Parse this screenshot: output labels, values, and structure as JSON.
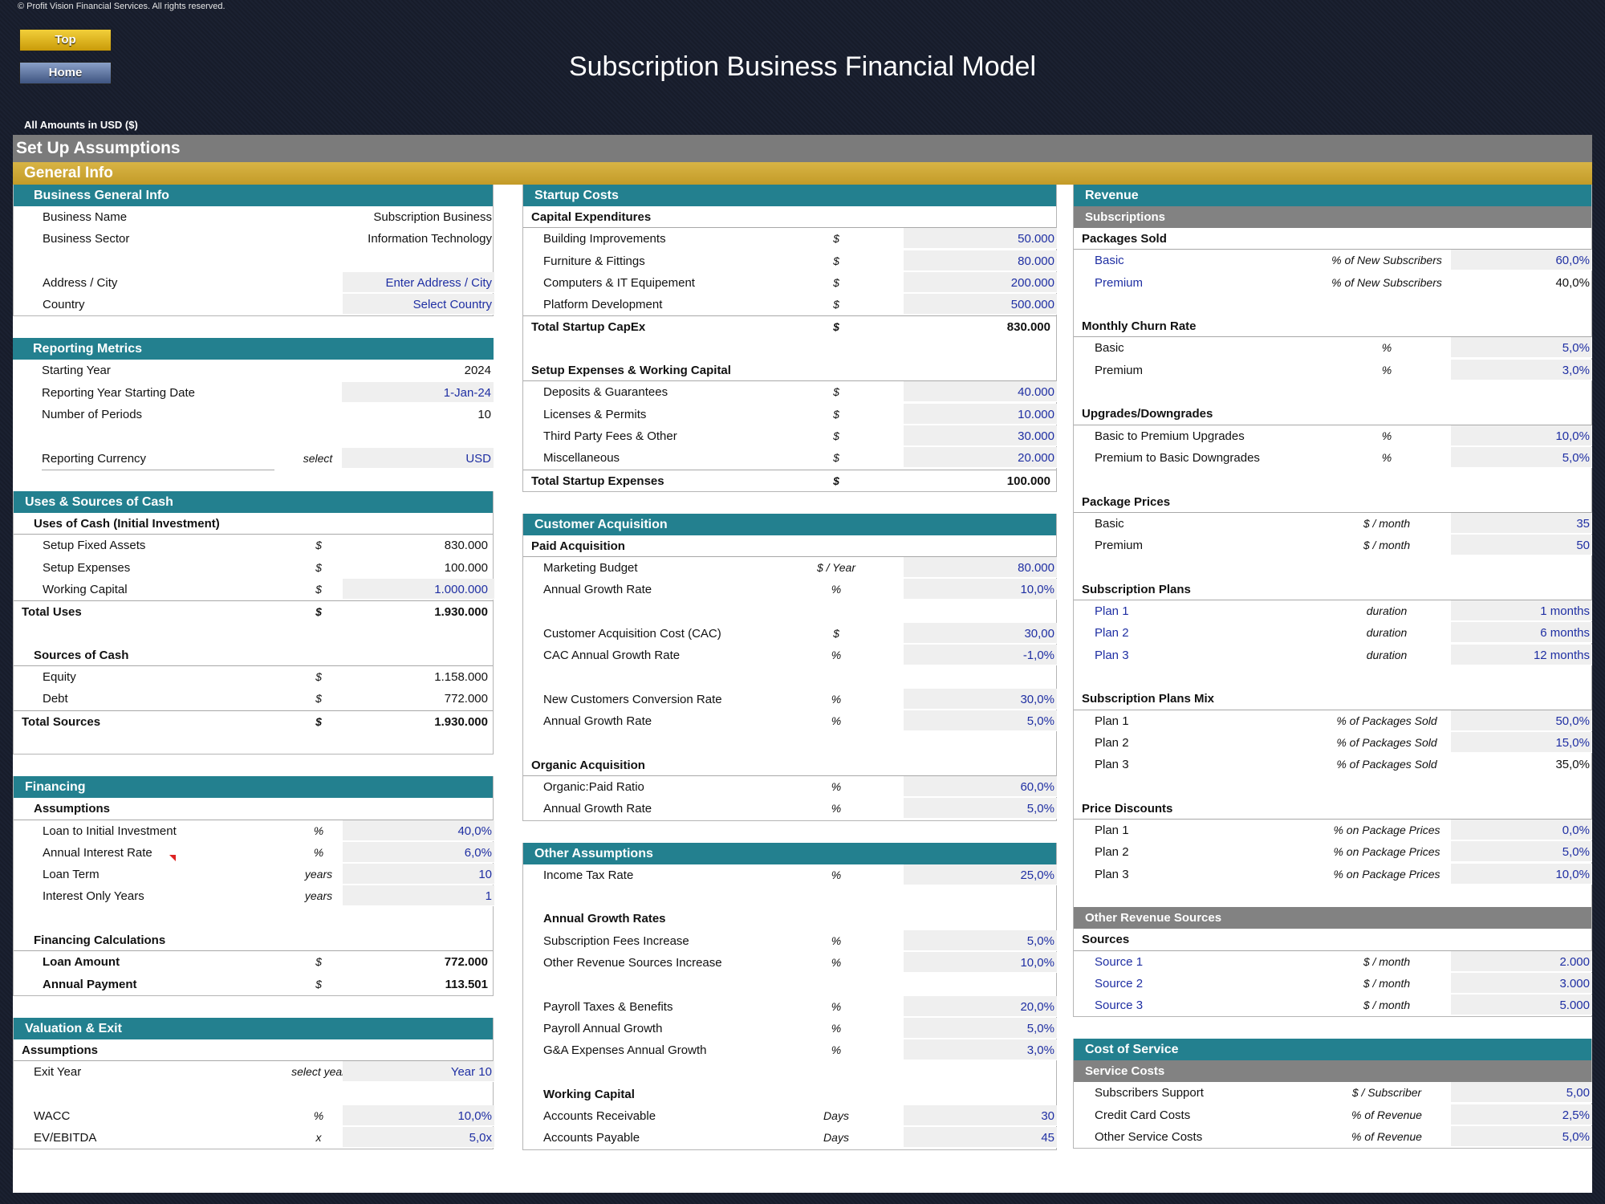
{
  "copyright": "© Profit Vision Financial Services. All rights reserved.",
  "nav": {
    "top": "Top",
    "home": "Home"
  },
  "title": "Subscription Business Financial Model",
  "amounts_note": "All Amounts in  USD ($)",
  "setup_title": "Set Up Assumptions",
  "general_title": "General Info",
  "business_info": {
    "title": "Business General Info",
    "name_label": "Business Name",
    "name_value": "Subscription Business",
    "sector_label": "Business Sector",
    "sector_value": "Information Technology",
    "address_label": "Address / City",
    "address_value": "Enter Address / City",
    "country_label": "Country",
    "country_value": "Select Country"
  },
  "reporting": {
    "title": "Reporting Metrics",
    "start_year_label": "Starting Year",
    "start_year": "2024",
    "start_date_label": "Reporting Year Starting Date",
    "start_date": "1-Jan-24",
    "periods_label": "Number of Periods",
    "periods": "10",
    "currency_label": "Reporting Currency",
    "currency_unit": "select",
    "currency": "USD"
  },
  "uses_sources": {
    "title": "Uses & Sources of Cash",
    "uses_sub": "Uses of Cash (Initial Investment)",
    "uses": [
      {
        "label": "Setup Fixed Assets",
        "unit": "$",
        "value": "830.000"
      },
      {
        "label": "Setup Expenses",
        "unit": "$",
        "value": "100.000"
      },
      {
        "label": "Working Capital",
        "unit": "$",
        "value": "1.000.000"
      }
    ],
    "total_uses_label": "Total Uses",
    "total_uses_unit": "$",
    "total_uses": "1.930.000",
    "sources_sub": "Sources of Cash",
    "sources": [
      {
        "label": "Equity",
        "unit": "$",
        "value": "1.158.000"
      },
      {
        "label": "Debt",
        "unit": "$",
        "value": "772.000"
      }
    ],
    "total_sources_label": "Total Sources",
    "total_sources_unit": "$",
    "total_sources": "1.930.000"
  },
  "financing": {
    "title": "Financing",
    "assumptions_sub": "Assumptions",
    "rows": [
      {
        "label": "Loan to Initial Investment",
        "unit": "%",
        "value": "40,0%"
      },
      {
        "label": "Annual Interest Rate",
        "unit": "%",
        "value": "6,0%"
      },
      {
        "label": "Loan Term",
        "unit": "years",
        "value": "10"
      },
      {
        "label": "Interest Only Years",
        "unit": "years",
        "value": "1"
      }
    ],
    "calc_sub": "Financing Calculations",
    "loan_amount_label": "Loan Amount",
    "loan_amount_unit": "$",
    "loan_amount": "772.000",
    "annual_payment_label": "Annual Payment",
    "annual_payment_unit": "$",
    "annual_payment": "113.501"
  },
  "valuation": {
    "title": "Valuation & Exit",
    "assumptions_sub": "Assumptions",
    "exit_label": "Exit Year",
    "exit_unit": "select year",
    "exit_value": "Year 10",
    "wacc_label": "WACC",
    "wacc_unit": "%",
    "wacc_value": "10,0%",
    "ev_label": "EV/EBITDA",
    "ev_unit": "x",
    "ev_value": "5,0x"
  },
  "startup": {
    "title": "Startup Costs",
    "capex_sub": "Capital Expenditures",
    "capex": [
      {
        "label": "Building Improvements",
        "unit": "$",
        "value": "50.000"
      },
      {
        "label": "Furniture & Fittings",
        "unit": "$",
        "value": "80.000"
      },
      {
        "label": "Computers & IT Equipement",
        "unit": "$",
        "value": "200.000"
      },
      {
        "label": "Platform Development",
        "unit": "$",
        "value": "500.000"
      }
    ],
    "total_capex_label": "Total Startup CapEx",
    "total_capex_unit": "$",
    "total_capex": "830.000",
    "setup_sub": "Setup Expenses & Working Capital",
    "setup": [
      {
        "label": "Deposits & Guarantees",
        "unit": "$",
        "value": "40.000"
      },
      {
        "label": "Licenses & Permits",
        "unit": "$",
        "value": "10.000"
      },
      {
        "label": "Third Party Fees & Other",
        "unit": "$",
        "value": "30.000"
      },
      {
        "label": "Miscellaneous",
        "unit": "$",
        "value": "20.000"
      }
    ],
    "total_setup_label": "Total Startup Expenses",
    "total_setup_unit": "$",
    "total_setup": "100.000"
  },
  "acquisition": {
    "title": "Customer Acquisition",
    "paid_sub": "Paid Acquisition",
    "budget_label": "Marketing Budget",
    "budget_unit": "$ / Year",
    "budget": "80.000",
    "growth_label": "Annual Growth Rate",
    "growth_unit": "%",
    "growth": "10,0%",
    "cac_label": "Customer Acquisition Cost (CAC)",
    "cac_unit": "$",
    "cac": "30,00",
    "cac_growth_label": "CAC Annual Growth Rate",
    "cac_growth_unit": "%",
    "cac_growth": "-1,0%",
    "conv_label": "New Customers Conversion Rate",
    "conv_unit": "%",
    "conv": "30,0%",
    "conv_growth_label": "Annual Growth Rate",
    "conv_growth_unit": "%",
    "conv_growth": "5,0%",
    "organic_sub": "Organic Acquisition",
    "ratio_label": "Organic:Paid Ratio",
    "ratio_unit": "%",
    "ratio": "60,0%",
    "org_growth_label": "Annual Growth Rate",
    "org_growth_unit": "%",
    "org_growth": "5,0%"
  },
  "other": {
    "title": "Other Assumptions",
    "tax_label": "Income Tax Rate",
    "tax_unit": "%",
    "tax": "25,0%",
    "growth_sub": "Annual Growth Rates",
    "fees_label": "Subscription Fees Increase",
    "fees_unit": "%",
    "fees": "5,0%",
    "other_rev_label": "Other Revenue Sources Increase",
    "other_rev_unit": "%",
    "other_rev": "10,0%",
    "payroll_label": "Payroll Taxes & Benefits",
    "payroll_unit": "%",
    "payroll": "20,0%",
    "payroll_growth_label": "Payroll Annual Growth",
    "payroll_growth_unit": "%",
    "payroll_growth": "5,0%",
    "ga_label": "G&A Expenses Annual Growth",
    "ga_unit": "%",
    "ga": "3,0%",
    "wc_sub": "Working Capital",
    "ar_label": "Accounts Receivable",
    "ar_unit": "Days",
    "ar": "30",
    "ap_label": "Accounts Payable",
    "ap_unit": "Days",
    "ap": "45"
  },
  "revenue": {
    "title": "Revenue",
    "subs_head": "Subscriptions",
    "packages_sub": "Packages Sold",
    "basic_label": "Basic",
    "basic_unit": "% of New Subscribers",
    "basic": "60,0%",
    "premium_label": "Premium",
    "premium_unit": "% of New Subscribers",
    "premium": "40,0%",
    "churn_sub": "Monthly Churn Rate",
    "churn_basic_label": "Basic",
    "churn_basic_unit": "%",
    "churn_basic": "5,0%",
    "churn_premium_label": "Premium",
    "churn_premium_unit": "%",
    "churn_premium": "3,0%",
    "updown_sub": "Upgrades/Downgrades",
    "up_label": "Basic to Premium Upgrades",
    "up_unit": "%",
    "up": "10,0%",
    "down_label": "Premium to Basic Downgrades",
    "down_unit": "%",
    "down": "5,0%",
    "prices_sub": "Package Prices",
    "price_basic_label": "Basic",
    "price_basic_unit": "$ / month",
    "price_basic": "35",
    "price_premium_label": "Premium",
    "price_premium_unit": "$ / month",
    "price_premium": "50",
    "plans_sub": "Subscription Plans",
    "plans": [
      {
        "label": "Plan 1",
        "unit": "duration",
        "value": "1 months"
      },
      {
        "label": "Plan 2",
        "unit": "duration",
        "value": "6 months"
      },
      {
        "label": "Plan 3",
        "unit": "duration",
        "value": "12 months"
      }
    ],
    "mix_sub": "Subscription Plans Mix",
    "mix": [
      {
        "label": "Plan 1",
        "unit": "% of Packages Sold",
        "value": "50,0%"
      },
      {
        "label": "Plan 2",
        "unit": "% of Packages Sold",
        "value": "15,0%"
      },
      {
        "label": "Plan 3",
        "unit": "% of Packages Sold",
        "value": "35,0%"
      }
    ],
    "disc_sub": "Price Discounts",
    "disc": [
      {
        "label": "Plan 1",
        "unit": "% on Package Prices",
        "value": "0,0%"
      },
      {
        "label": "Plan 2",
        "unit": "% on Package Prices",
        "value": "5,0%"
      },
      {
        "label": "Plan 3",
        "unit": "% on Package Prices",
        "value": "10,0%"
      }
    ],
    "other_head": "Other Revenue Sources",
    "sources_sub": "Sources",
    "sources": [
      {
        "label": "Source 1",
        "unit": "$ / month",
        "value": "2.000"
      },
      {
        "label": "Source 2",
        "unit": "$ / month",
        "value": "3.000"
      },
      {
        "label": "Source 3",
        "unit": "$ / month",
        "value": "5.000"
      }
    ]
  },
  "cost_service": {
    "title": "Cost of Service",
    "head": "Service Costs",
    "rows": [
      {
        "label": "Subscribers Support",
        "unit": "$ / Subscriber",
        "value": "5,00"
      },
      {
        "label": "Credit Card Costs",
        "unit": "% of Revenue",
        "value": "2,5%"
      },
      {
        "label": "Other Service Costs",
        "unit": "% of Revenue",
        "value": "5,0%"
      }
    ]
  }
}
